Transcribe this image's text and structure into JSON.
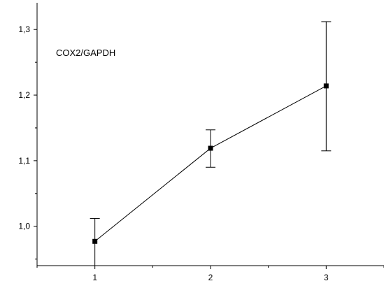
{
  "chart_data": {
    "type": "line",
    "annotation": "COX2/GAPDH",
    "x": [
      1,
      2,
      3
    ],
    "series": [
      {
        "values": [
          0.977,
          1.119,
          1.214
        ],
        "error_upper": [
          1.012,
          1.147,
          1.312
        ],
        "error_lower": [
          0.94,
          1.09,
          1.115
        ]
      }
    ],
    "x_ticks": [
      "1",
      "2",
      "3"
    ],
    "y_ticks": [
      "1,0",
      "1,1",
      "1,2",
      "1,3"
    ],
    "y_tick_values": [
      1.0,
      1.1,
      1.2,
      1.3
    ],
    "xlim": [
      0.5,
      3.5
    ],
    "ylim": [
      0.94,
      1.345
    ],
    "grid": false,
    "line_color": "#000000",
    "marker": "square"
  }
}
